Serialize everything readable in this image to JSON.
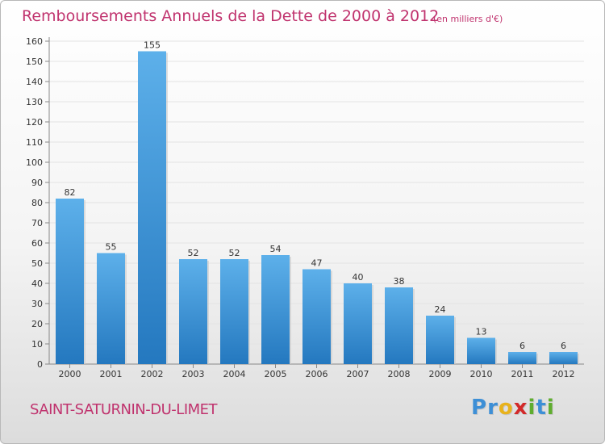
{
  "header": {
    "title": "Remboursements Annuels de la Dette de 2000 à 2012",
    "subtitle": "(en milliers d'€)"
  },
  "footer": {
    "town": "SAINT-SATURNIN-DU-LIMET",
    "logo_letters": [
      {
        "char": "P",
        "color": "#3d8fd6"
      },
      {
        "char": "r",
        "color": "#3d8fd6"
      },
      {
        "char": "o",
        "color": "#e8b21c"
      },
      {
        "char": "x",
        "color": "#d22a2a"
      },
      {
        "char": "i",
        "color": "#5fad2f"
      },
      {
        "char": "t",
        "color": "#3d8fd6"
      },
      {
        "char": "i",
        "color": "#5fad2f"
      }
    ]
  },
  "colors": {
    "title": "#c0336e",
    "bar_light": "#5db0ea",
    "bar_dark": "#2478bf"
  },
  "chart_data": {
    "type": "bar",
    "categories": [
      "2000",
      "2001",
      "2002",
      "2003",
      "2004",
      "2005",
      "2006",
      "2007",
      "2008",
      "2009",
      "2010",
      "2011",
      "2012"
    ],
    "values": [
      82,
      55,
      155,
      52,
      52,
      54,
      47,
      40,
      38,
      24,
      13,
      6,
      6
    ],
    "data_labels": [
      "82",
      "55",
      "155",
      "52",
      "52",
      "54",
      "47",
      "40",
      "38",
      "24",
      "13",
      "6",
      "6"
    ],
    "yticks": [
      "0",
      "10",
      "20",
      "30",
      "40",
      "50",
      "60",
      "70",
      "80",
      "90",
      "100",
      "110",
      "120",
      "130",
      "140",
      "150",
      "160"
    ],
    "ylim": [
      0,
      160
    ],
    "grid": true,
    "title": "Remboursements Annuels de la Dette de 2000 à 2012",
    "xlabel": "",
    "ylabel": ""
  }
}
